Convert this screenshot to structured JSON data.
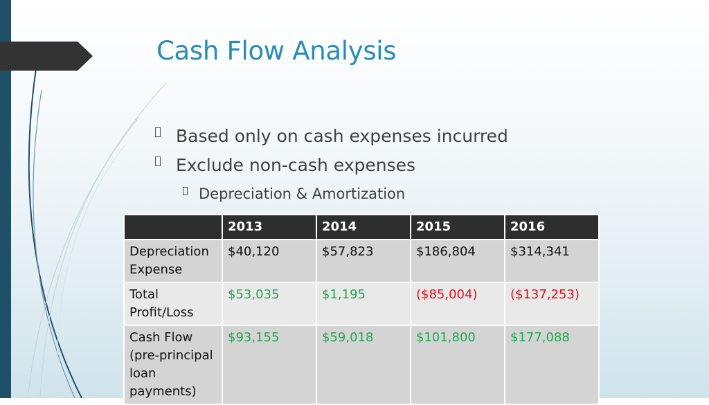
{
  "slide": {
    "title": "Cash Flow Analysis",
    "bullets": [
      {
        "text": "Based only on cash expenses incurred",
        "level": 1
      },
      {
        "text": "Exclude non-cash expenses",
        "level": 1
      },
      {
        "text": "Depreciation & Amortization",
        "level": 2
      }
    ]
  },
  "table": {
    "headers": [
      "",
      "2013",
      "2014",
      "2015",
      "2016"
    ],
    "rows": [
      {
        "label": "Depreciation Expense",
        "values": [
          "$40,120",
          "$57,823",
          "$186,804",
          "$314,341"
        ]
      },
      {
        "label": "Total Profit/Loss",
        "values": [
          "$53,035",
          "$1,195",
          "($85,004)",
          "($137,253)"
        ]
      },
      {
        "label": "Cash Flow (pre-principal loan payments)",
        "values": [
          "$93,155",
          "$59,018",
          "$101,800",
          "$177,088"
        ]
      }
    ]
  },
  "colors": {
    "title": "#2a8cb5",
    "positive": "#1bab4d",
    "negative": "#e0101a",
    "header_bg": "#2e2e2e",
    "left_bar": "#1f5068"
  }
}
